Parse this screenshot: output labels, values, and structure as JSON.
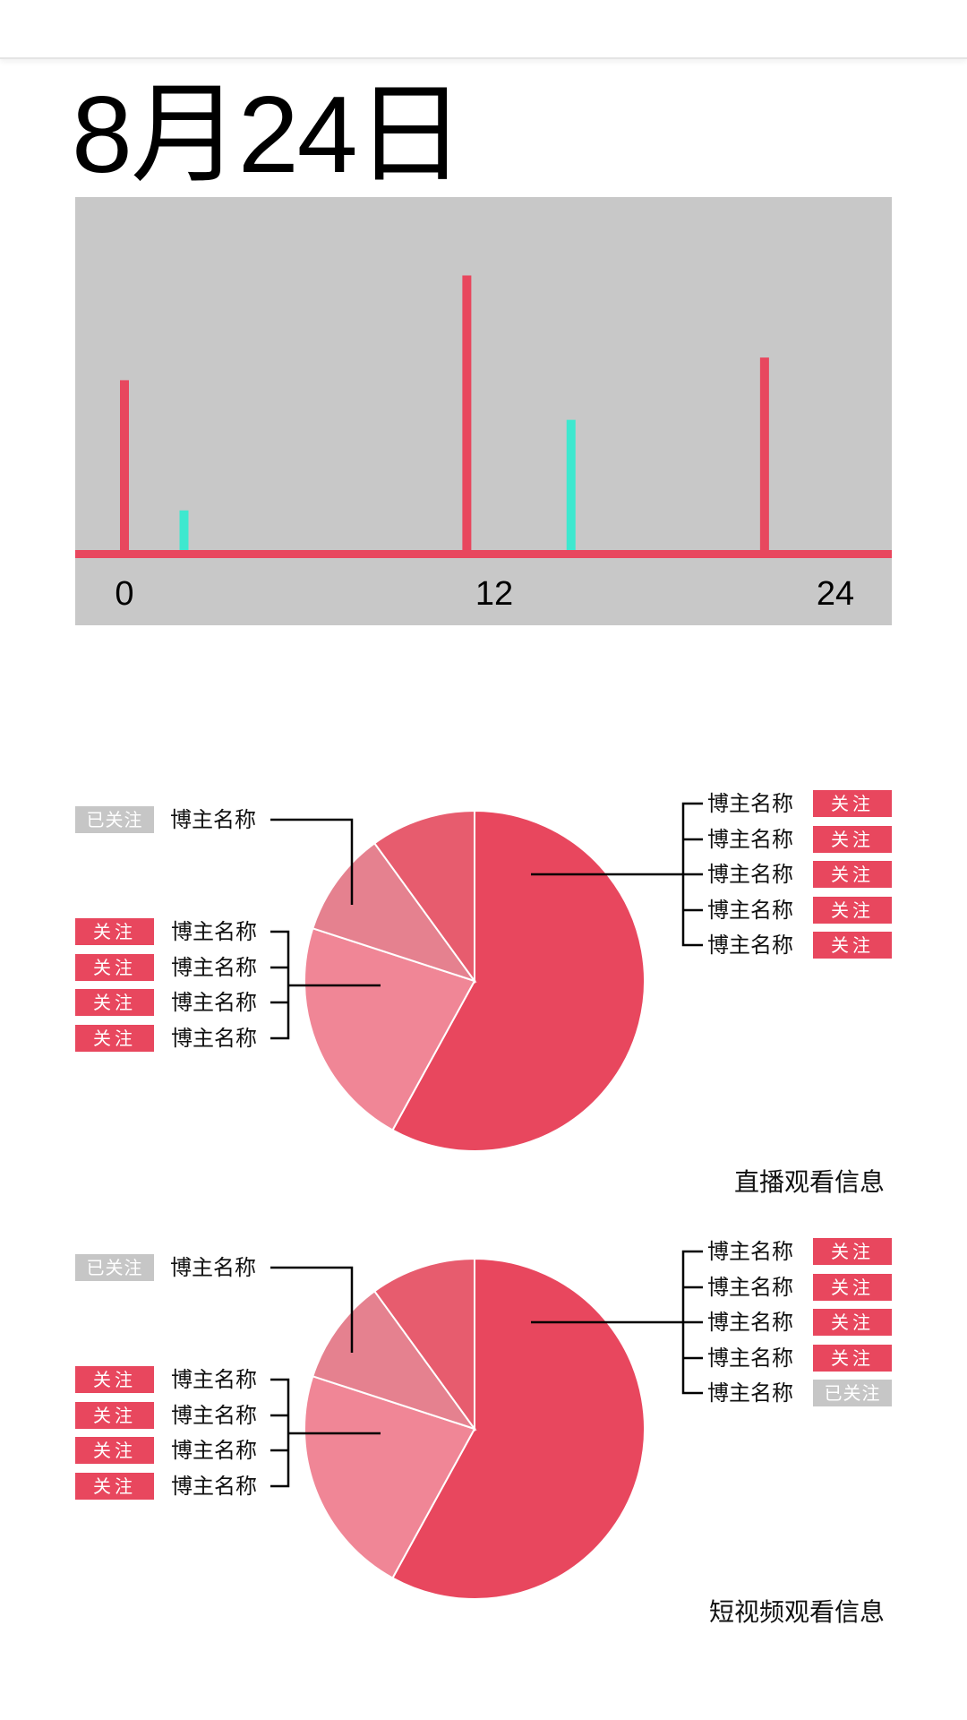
{
  "date_title": "8月24日",
  "colors": {
    "accent": "#e8475e",
    "cyan": "#3ee8cf",
    "grey_panel": "#c8c8c8",
    "followed_badge": "#c6c6c6"
  },
  "chart_data": [
    {
      "type": "bar",
      "x_ticks": [
        "0",
        "12",
        "24"
      ],
      "xlim": [
        0,
        24
      ],
      "ylim": [
        0,
        1
      ],
      "series": [
        {
          "color": "#e8475e",
          "points": [
            [
              0,
              0.6
            ],
            [
              11.5,
              0.97
            ],
            [
              21.5,
              0.68
            ]
          ]
        },
        {
          "color": "#3ee8cf",
          "points": [
            [
              2,
              0.14
            ],
            [
              15,
              0.46
            ]
          ]
        }
      ]
    },
    {
      "type": "pie",
      "title": "直播观看信息",
      "values": [
        58,
        22,
        10,
        10
      ],
      "colors": [
        "#e8475e",
        "#f08696",
        "#e5818f",
        "#e75c6e"
      ],
      "left_top": {
        "badge": "已关注",
        "badge_state": "followed",
        "name": "博主名称"
      },
      "left_group": [
        {
          "badge": "关注",
          "badge_state": "follow",
          "name": "博主名称"
        },
        {
          "badge": "关注",
          "badge_state": "follow",
          "name": "博主名称"
        },
        {
          "badge": "关注",
          "badge_state": "follow",
          "name": "博主名称"
        },
        {
          "badge": "关注",
          "badge_state": "follow",
          "name": "博主名称"
        }
      ],
      "right_group": [
        {
          "name": "博主名称",
          "badge": "关注",
          "badge_state": "follow"
        },
        {
          "name": "博主名称",
          "badge": "关注",
          "badge_state": "follow"
        },
        {
          "name": "博主名称",
          "badge": "关注",
          "badge_state": "follow"
        },
        {
          "name": "博主名称",
          "badge": "关注",
          "badge_state": "follow"
        },
        {
          "name": "博主名称",
          "badge": "关注",
          "badge_state": "follow"
        }
      ]
    },
    {
      "type": "pie",
      "title": "短视频观看信息",
      "values": [
        58,
        22,
        10,
        10
      ],
      "colors": [
        "#e8475e",
        "#f08696",
        "#e5818f",
        "#e75c6e"
      ],
      "left_top": {
        "badge": "已关注",
        "badge_state": "followed",
        "name": "博主名称"
      },
      "left_group": [
        {
          "badge": "关注",
          "badge_state": "follow",
          "name": "博主名称"
        },
        {
          "badge": "关注",
          "badge_state": "follow",
          "name": "博主名称"
        },
        {
          "badge": "关注",
          "badge_state": "follow",
          "name": "博主名称"
        },
        {
          "badge": "关注",
          "badge_state": "follow",
          "name": "博主名称"
        }
      ],
      "right_group": [
        {
          "name": "博主名称",
          "badge": "关注",
          "badge_state": "follow"
        },
        {
          "name": "博主名称",
          "badge": "关注",
          "badge_state": "follow"
        },
        {
          "name": "博主名称",
          "badge": "关注",
          "badge_state": "follow"
        },
        {
          "name": "博主名称",
          "badge": "关注",
          "badge_state": "follow"
        },
        {
          "name": "博主名称",
          "badge": "已关注",
          "badge_state": "followed"
        }
      ]
    }
  ]
}
